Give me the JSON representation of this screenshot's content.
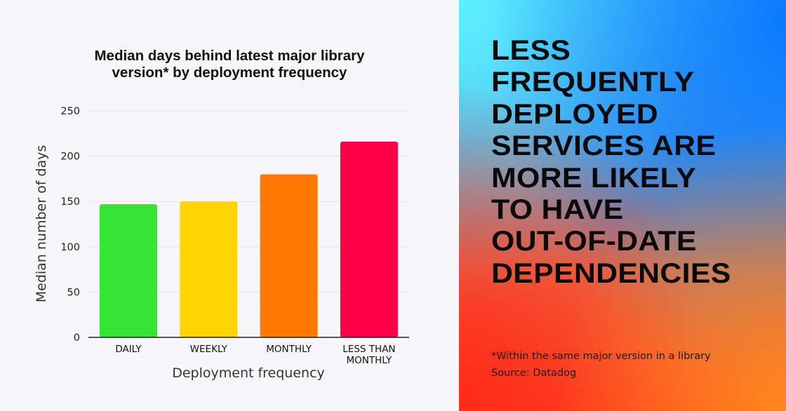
{
  "chart_data": {
    "type": "bar",
    "title_lines": [
      "Median days behind latest major library",
      "version* by deployment frequency"
    ],
    "categories": [
      [
        "DAILY"
      ],
      [
        "WEEKLY"
      ],
      [
        "MONTHLY"
      ],
      [
        "LESS THAN",
        "MONTHLY"
      ]
    ],
    "values": [
      147,
      150,
      180,
      216
    ],
    "bar_colors": [
      "#33e433",
      "#ffd400",
      "#ff7800",
      "#ff0046"
    ],
    "xlabel": "Deployment frequency",
    "ylabel": "Median number of days",
    "ylim": [
      0,
      250
    ],
    "yticks": [
      0,
      50,
      100,
      150,
      200,
      250
    ],
    "grid": true
  },
  "headline_lines": [
    "LESS",
    "FREQUENTLY",
    "DEPLOYED",
    "SERVICES ARE",
    "MORE LIKELY",
    "TO HAVE",
    "OUT-OF-DATE",
    "DEPENDENCIES"
  ],
  "footnote": {
    "note": "*Within the same major version in a library",
    "source": "Source: Datadog"
  }
}
